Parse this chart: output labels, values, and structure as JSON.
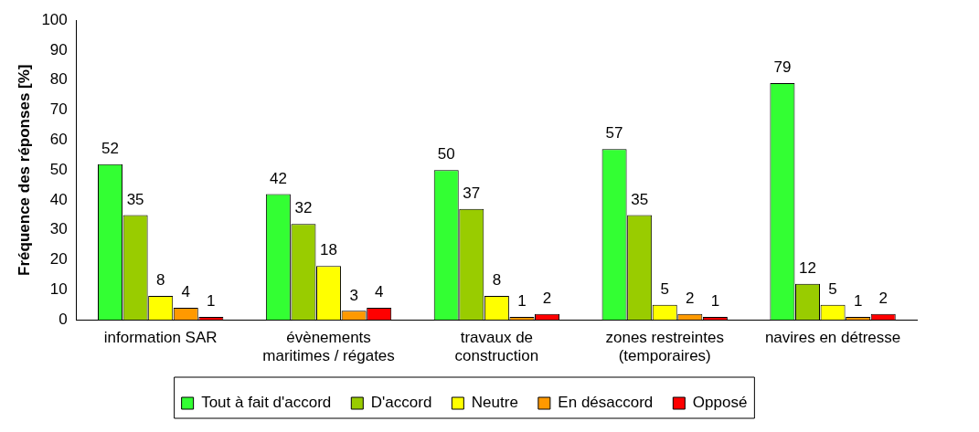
{
  "chart_data": {
    "type": "bar",
    "ylabel": "Fréquence des réponses [%]",
    "categories": [
      "information SAR",
      "évènements maritimes / régates",
      "travaux de construction",
      "zones restreintes (temporaires)",
      "navires en détresse"
    ],
    "series": [
      {
        "name": "Tout à fait d'accord",
        "color": "#33ff33",
        "values": [
          52,
          42,
          50,
          57,
          79
        ]
      },
      {
        "name": "D'accord",
        "color": "#99cc00",
        "values": [
          35,
          32,
          37,
          35,
          12
        ]
      },
      {
        "name": "Neutre",
        "color": "#ffff00",
        "values": [
          8,
          18,
          8,
          5,
          5
        ]
      },
      {
        "name": "En désaccord",
        "color": "#ff9900",
        "values": [
          4,
          3,
          1,
          2,
          1
        ]
      },
      {
        "name": "Opposé",
        "color": "#ff0000",
        "values": [
          1,
          4,
          2,
          1,
          2
        ]
      }
    ],
    "ylim": [
      0,
      100
    ],
    "yticks": [
      0,
      10,
      20,
      30,
      40,
      50,
      60,
      70,
      80,
      90,
      100
    ],
    "grid": false,
    "legend": "bottom",
    "data_labels": true
  }
}
